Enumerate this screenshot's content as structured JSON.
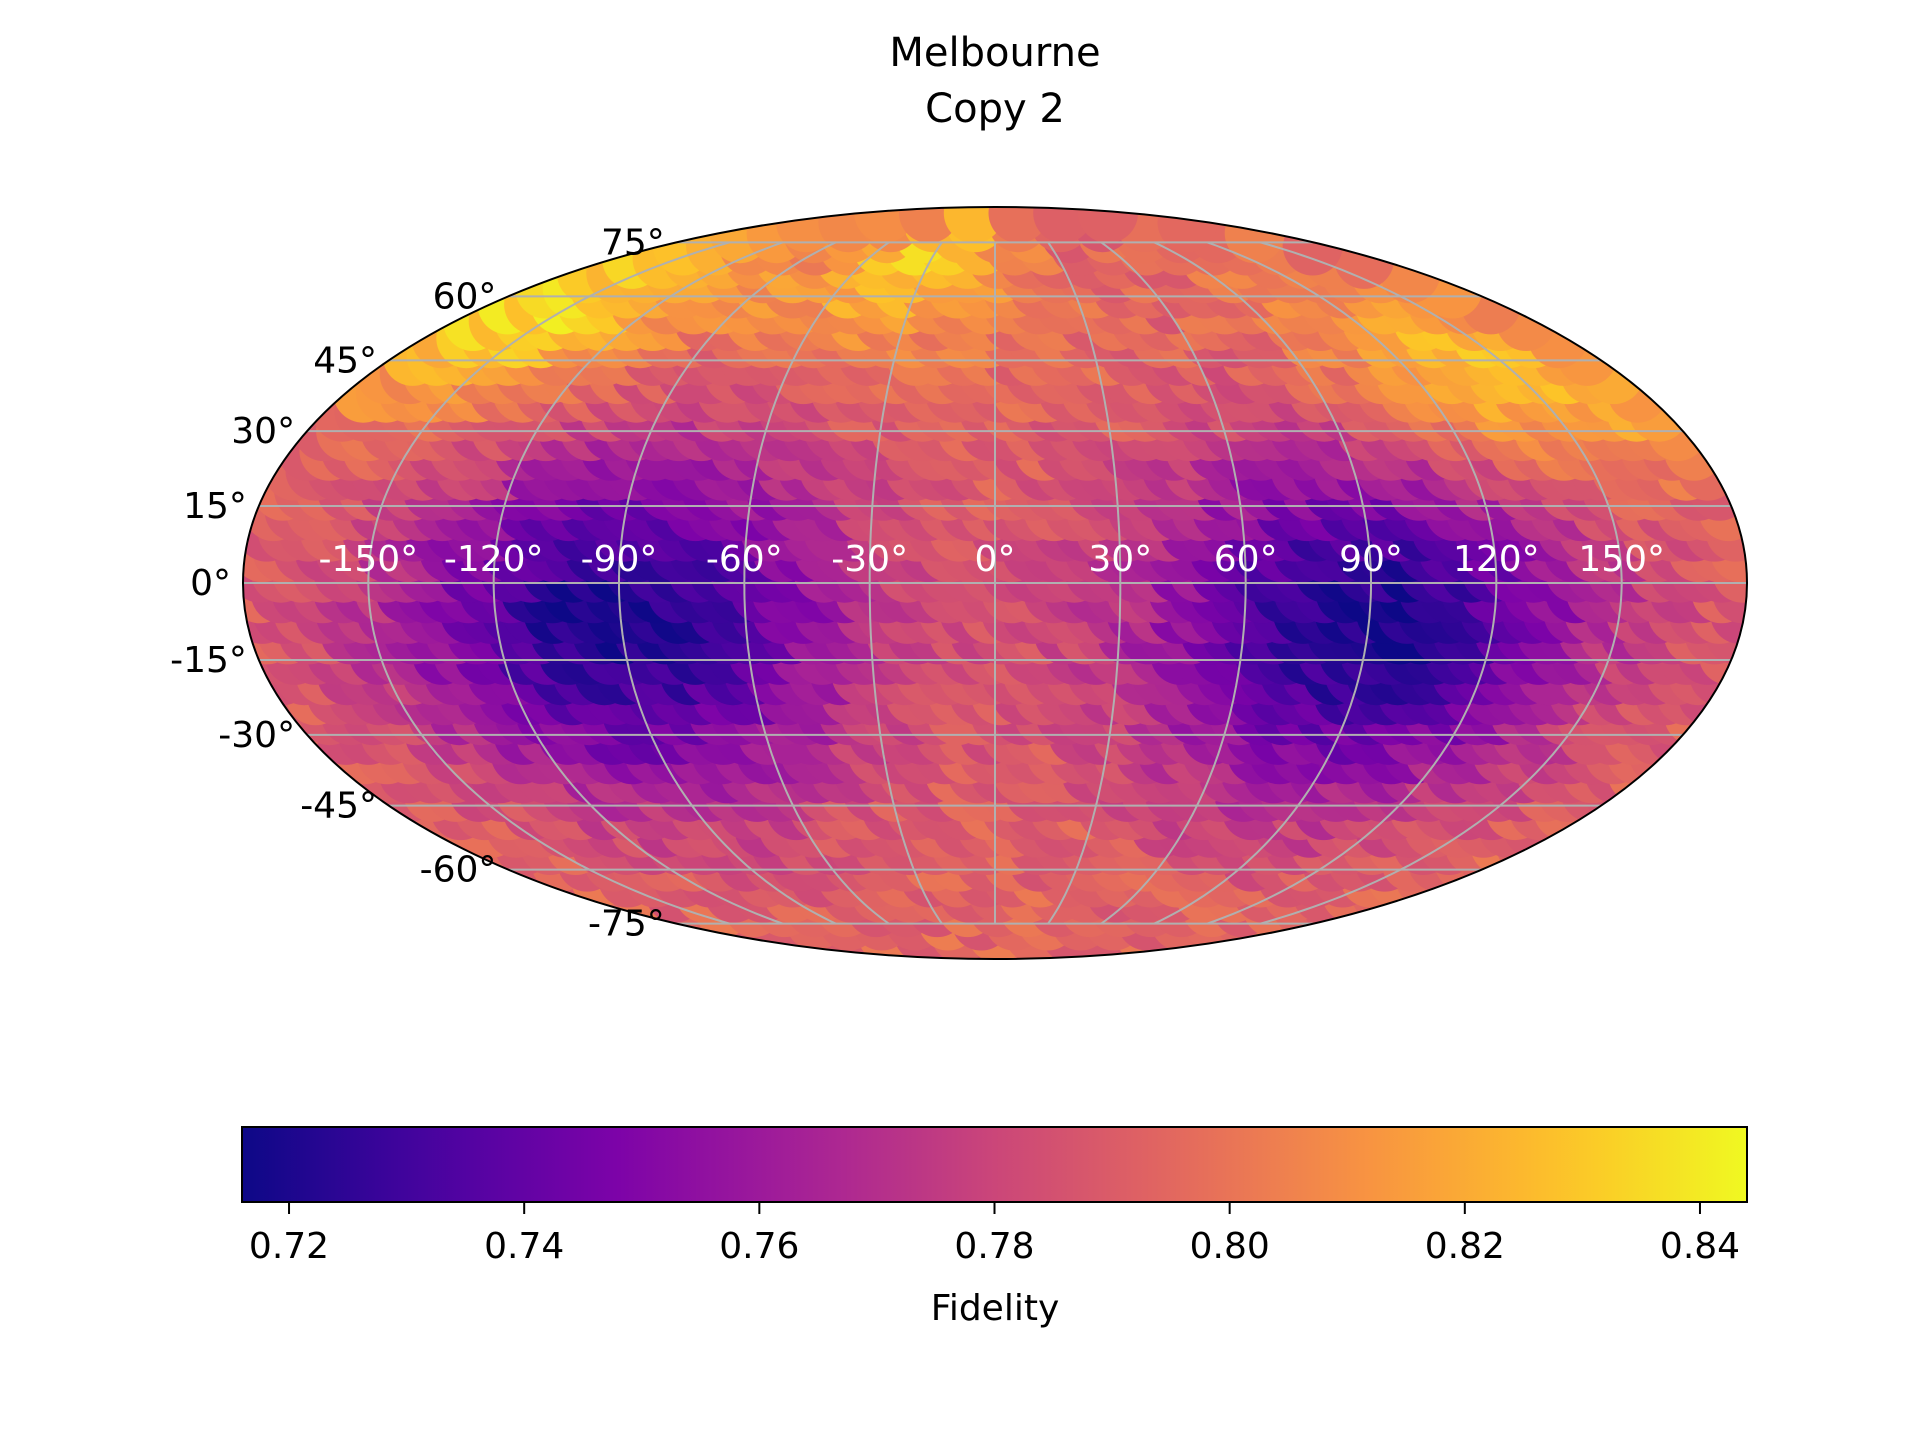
{
  "chart_data": {
    "type": "heatmap",
    "projection": "mollweide",
    "title_lines": [
      "Melbourne",
      "Copy 2"
    ],
    "grid": true,
    "lon_ticks": [
      -150,
      -120,
      -90,
      -60,
      -30,
      0,
      30,
      60,
      90,
      120,
      150
    ],
    "lon_tick_labels": [
      "-150°",
      "-120°",
      "-90°",
      "-60°",
      "-30°",
      "0°",
      "30°",
      "60°",
      "90°",
      "120°",
      "150°"
    ],
    "lat_ticks": [
      75,
      60,
      45,
      30,
      15,
      0,
      -15,
      -30,
      -45,
      -60,
      -75
    ],
    "lat_tick_labels": [
      "75°",
      "60°",
      "45°",
      "30°",
      "15°",
      "0°",
      "-15°",
      "-30°",
      "-45°",
      "-60°",
      "-75°"
    ],
    "colormap": "plasma",
    "colorbar": {
      "label": "Fidelity",
      "range": [
        0.716,
        0.844
      ],
      "ticks": [
        0.72,
        0.74,
        0.76,
        0.78,
        0.8,
        0.82,
        0.84
      ],
      "tick_labels": [
        "0.72",
        "0.74",
        "0.76",
        "0.78",
        "0.80",
        "0.82",
        "0.84"
      ],
      "orientation": "horizontal",
      "placement": "bottom"
    },
    "field": {
      "description_free": true,
      "base": 0.795,
      "lobes": [
        {
          "lon": -88,
          "lat": -5,
          "value": 0.718,
          "spread_lon": 55,
          "spread_lat": 35
        },
        {
          "lon": 92,
          "lat": -5,
          "value": 0.718,
          "spread_lon": 55,
          "spread_lat": 35
        }
      ],
      "poles": [
        {
          "lon": -160,
          "lat": 60,
          "value": 0.835
        },
        {
          "lon": -40,
          "lat": 75,
          "value": 0.83
        },
        {
          "lon": 150,
          "lat": 45,
          "value": 0.828
        }
      ]
    }
  }
}
